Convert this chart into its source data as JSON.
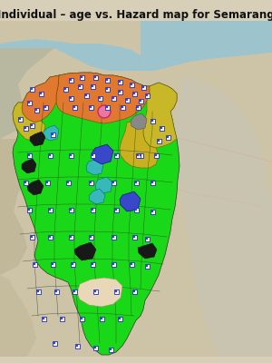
{
  "title": "Individual – age vs. Hazard map for Semarang",
  "title_fontsize": 8.5,
  "title_fontweight": "bold",
  "figure_bg": "#d8cfb8",
  "terrain_bg": "#cdc4a8",
  "sea_color": "#9dc4cc",
  "terrain_hill_color": "#c4bca0",
  "terrain_sw_color": "#c0b898",
  "terrain_se_color": "#c8c4b0",
  "colors": {
    "orange": "#e07830",
    "yellow_green": "#c8b828",
    "olive_yellow": "#d4b830",
    "bright_green": "#18d818",
    "teal": "#38b8b8",
    "blue": "#3848c8",
    "black": "#181818",
    "gray": "#888888",
    "pink": "#e878a0",
    "light_tan": "#e8d8b8",
    "dark_border": "#444433",
    "map_road": "#c8a090"
  },
  "map_border_color": "#1a1a0a",
  "district_border_color": "#333322"
}
